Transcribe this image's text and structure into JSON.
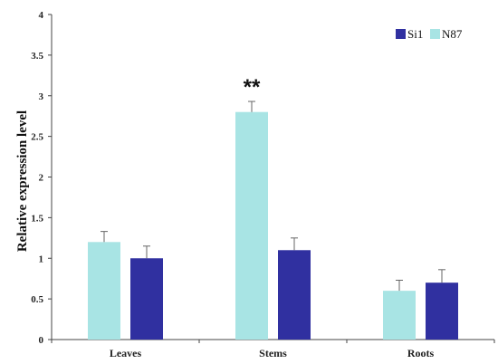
{
  "chart_data": {
    "type": "bar",
    "ylabel": "Relative expression level",
    "xlabel": "",
    "categories": [
      "Leaves",
      "Stems",
      "Roots"
    ],
    "ylim": [
      0,
      4
    ],
    "yticks": [
      "0",
      "0.5",
      "1",
      "1.5",
      "2",
      "2.5",
      "3",
      "3.5",
      "4"
    ],
    "series": [
      {
        "name": "N87",
        "color": "#A8E4E4",
        "values": [
          1.2,
          2.8,
          0.6
        ],
        "errors": [
          0.13,
          0.13,
          0.13
        ]
      },
      {
        "name": "Si1",
        "color": "#3030A0",
        "values": [
          1.0,
          1.1,
          0.7
        ],
        "errors": [
          0.15,
          0.15,
          0.16
        ]
      }
    ],
    "legend": {
      "position": "top-right",
      "order": [
        "Si1",
        "N87"
      ]
    },
    "annotations": [
      {
        "text": "**",
        "category": "Stems",
        "series": "N87"
      }
    ],
    "grid": false
  }
}
